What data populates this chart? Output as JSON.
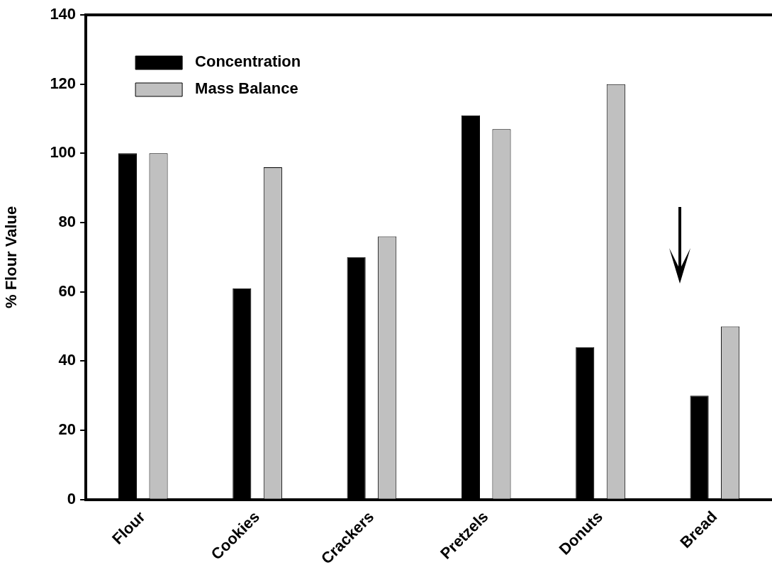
{
  "chart_data": {
    "type": "bar",
    "ylabel": "% Flour Value",
    "categories": [
      "Flour",
      "Cookies",
      "Crackers",
      "Pretzels",
      "Donuts",
      "Bread"
    ],
    "series": [
      {
        "name": "Concentration",
        "color": "#000000",
        "values": [
          100,
          61,
          70,
          111,
          44,
          30
        ]
      },
      {
        "name": "Mass Balance",
        "color": "#c0c0c0",
        "values": [
          100,
          96,
          76,
          107,
          120,
          50
        ]
      }
    ],
    "ylim": [
      0,
      140
    ],
    "yticks": [
      0,
      20,
      40,
      60,
      80,
      100,
      120,
      140
    ],
    "grid": false,
    "legend": "top left"
  }
}
